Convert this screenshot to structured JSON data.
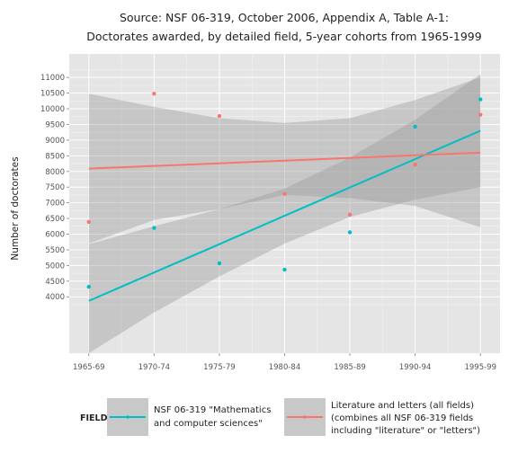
{
  "chart_data": {
    "type": "scatter",
    "title_lines": [
      "Source: NSF 06-319, October 2006, Appendix A, Table A-1:",
      "Doctorates awarded, by detailed field, 5-year cohorts from 1965-1999"
    ],
    "xlabel": "",
    "ylabel": "Number of doctorates",
    "categories": [
      "1965-69",
      "1970-74",
      "1975-79",
      "1980-84",
      "1985-89",
      "1990-94",
      "1995-99"
    ],
    "x_range": [
      0.7,
      7.3
    ],
    "y_range": [
      2200,
      11750
    ],
    "y_ticks": [
      4000,
      4500,
      5000,
      5500,
      6000,
      6500,
      7000,
      7500,
      8000,
      8500,
      9000,
      9500,
      10000,
      10500,
      11000
    ],
    "grid": true,
    "legend": {
      "title": "FIELD",
      "placement": "bottom",
      "entries": [
        {
          "series": 0,
          "lines": [
            "NSF 06-319 \"Mathematics",
            "and computer sciences\""
          ]
        },
        {
          "series": 1,
          "lines": [
            "Literature and letters (all fields)",
            "(combines all NSF 06-319 fields",
            "including \"literature\" or \"letters\")"
          ]
        }
      ]
    },
    "series": [
      {
        "color": "#00BFC4",
        "values": [
          4320,
          6200,
          5070,
          4870,
          6060,
          9430,
          10300
        ],
        "trend": [
          3870,
          4775,
          5680,
          6585,
          7490,
          8395,
          9300
        ],
        "band_lower": [
          2200,
          3500,
          4650,
          5700,
          6550,
          7100,
          7500
        ],
        "band_upper": [
          5680,
          6250,
          6800,
          7450,
          8450,
          9650,
          11100
        ]
      },
      {
        "color": "#F8766D",
        "values": [
          6390,
          10480,
          9770,
          7280,
          6620,
          8220,
          9810
        ],
        "trend": [
          8090,
          8175,
          8260,
          8345,
          8430,
          8515,
          8600
        ],
        "band_lower": [
          5700,
          6450,
          6800,
          7250,
          7150,
          6900,
          6220
        ],
        "band_upper": [
          10480,
          10060,
          9700,
          9550,
          9700,
          10280,
          11000
        ]
      }
    ]
  }
}
